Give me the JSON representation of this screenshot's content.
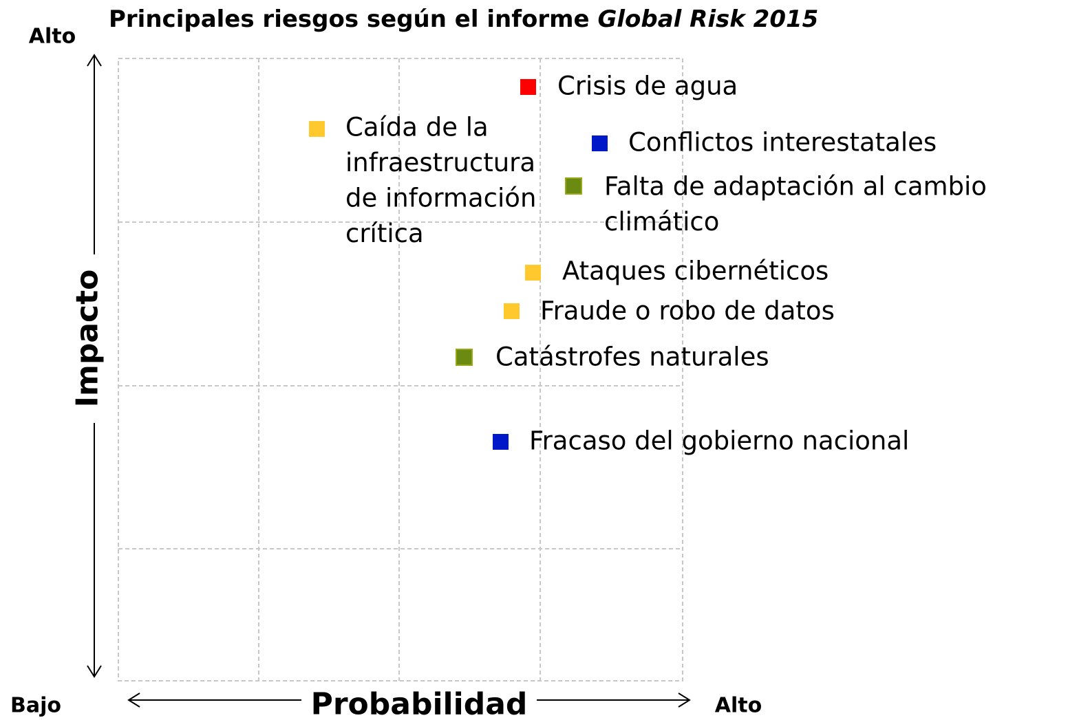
{
  "title": {
    "main": "Principales riesgos según el informe ",
    "italic": "Global Risk 2015"
  },
  "axes": {
    "y": {
      "label": "Impacto",
      "high": "Alto"
    },
    "x": {
      "label": "Probabilidad",
      "low": "Bajo",
      "high": "Alto"
    }
  },
  "risks": [
    {
      "lines": [
        "Crisis de agua"
      ]
    },
    {
      "lines": [
        "Caída de la",
        "infraestructura",
        "de información",
        "crítica"
      ]
    },
    {
      "lines": [
        "Conflictos interestatales"
      ]
    },
    {
      "lines": [
        "Falta de adaptación al cambio",
        "climático"
      ]
    },
    {
      "lines": [
        "Ataques cibernéticos"
      ]
    },
    {
      "lines": [
        "Fraude o robo de datos"
      ]
    },
    {
      "lines": [
        "Catástrofes naturales"
      ]
    },
    {
      "lines": [
        "Fracaso del gobierno nacional"
      ]
    }
  ]
}
